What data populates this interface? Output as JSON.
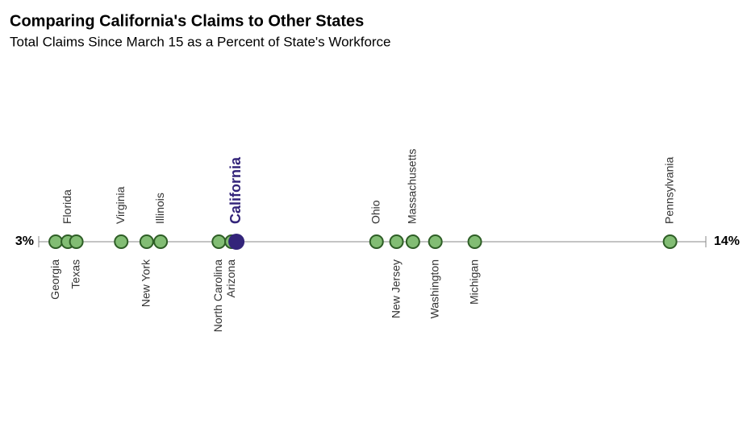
{
  "chart_data": {
    "type": "dot",
    "title": "Comparing California's Claims to Other States",
    "subtitle": "Total Claims Since March 15 as a Percent of State's Workforce",
    "categories": [
      "Georgia",
      "Florida",
      "Texas",
      "Virginia",
      "New York",
      "Illinois",
      "North Carolina",
      "Arizona",
      "California",
      "Ohio",
      "New Jersey",
      "Massachusetts",
      "Washington",
      "Michigan",
      "Pennsylvania"
    ],
    "values": [
      3.28,
      3.48,
      3.62,
      4.36,
      4.78,
      5.01,
      5.97,
      6.18,
      6.26,
      8.57,
      8.9,
      9.17,
      9.54,
      10.19,
      13.41
    ],
    "label_side": [
      "below",
      "above",
      "below",
      "above",
      "below",
      "above",
      "below",
      "below",
      "above",
      "above",
      "below",
      "above",
      "below",
      "below",
      "above"
    ],
    "highlight_index": 8,
    "color": "#82bd74",
    "edge_color": "#2e5e26",
    "highlight_color": "#33247a",
    "xlim": [
      3,
      14
    ],
    "xticks": [
      {
        "value": 3,
        "label": "3%"
      },
      {
        "value": 14,
        "label": "14%"
      }
    ]
  }
}
